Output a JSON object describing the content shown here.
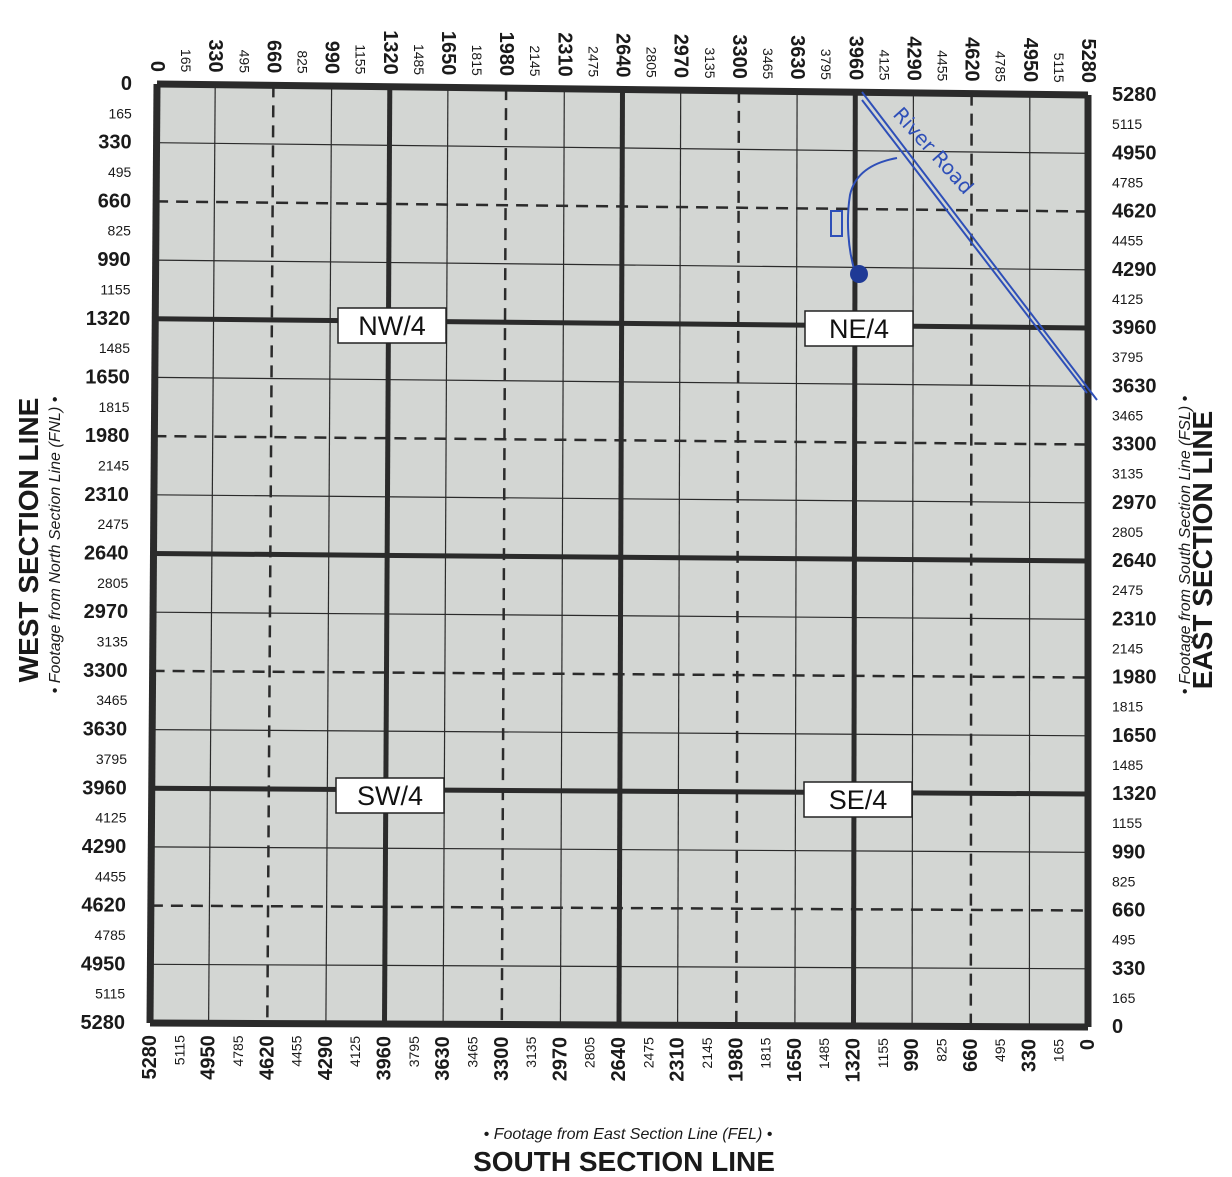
{
  "titles": {
    "west": "WEST SECTION LINE",
    "east": "EAST SECTION LINE",
    "south": "SOUTH SECTION LINE",
    "west_note": "• Footage from North Section Line (FNL) •",
    "east_note": "• Footage from South Section Line (FSL) •",
    "south_note": "• Footage from East Section Line (FEL) •"
  },
  "quarters": [
    "NW/4",
    "NE/4",
    "SW/4",
    "SE/4"
  ],
  "ticks": {
    "top": [
      "0",
      "165",
      "330",
      "495",
      "660",
      "825",
      "990",
      "1155",
      "1320",
      "1485",
      "1650",
      "1815",
      "1980",
      "2145",
      "2310",
      "2475",
      "2640",
      "2805",
      "2970",
      "3135",
      "3300",
      "3465",
      "3630",
      "3795",
      "3960",
      "4125",
      "4290",
      "4455",
      "4620",
      "4785",
      "4950",
      "5115",
      "5280"
    ],
    "bottom": [
      "5280",
      "5115",
      "4950",
      "4785",
      "4620",
      "4455",
      "4290",
      "4125",
      "3960",
      "3795",
      "3630",
      "3465",
      "3300",
      "3135",
      "2970",
      "2805",
      "2640",
      "2475",
      "2310",
      "2145",
      "1980",
      "1815",
      "1650",
      "1485",
      "1320",
      "1155",
      "990",
      "825",
      "660",
      "495",
      "330",
      "165",
      "0"
    ],
    "left": [
      "0",
      "165",
      "330",
      "495",
      "660",
      "825",
      "990",
      "1155",
      "1320",
      "1485",
      "1650",
      "1815",
      "1980",
      "2145",
      "2310",
      "2475",
      "2640",
      "2805",
      "2970",
      "3135",
      "3300",
      "3465",
      "3630",
      "3795",
      "3960",
      "4125",
      "4290",
      "4455",
      "4620",
      "4785",
      "4950",
      "5115",
      "5280"
    ],
    "right": [
      "5280",
      "5115",
      "4950",
      "4785",
      "4620",
      "4455",
      "4290",
      "4125",
      "3960",
      "3795",
      "3630",
      "3465",
      "3300",
      "3135",
      "2970",
      "2805",
      "2640",
      "2475",
      "2310",
      "2145",
      "1980",
      "1815",
      "1650",
      "1485",
      "1320",
      "1155",
      "990",
      "825",
      "660",
      "495",
      "330",
      "165",
      "0"
    ]
  },
  "annotation": {
    "road_label": "River Road",
    "ink_color": "#2e4fb8"
  },
  "colors": {
    "grid_fill": "#d3d6d3",
    "grid_line": "#2b2b2b"
  }
}
